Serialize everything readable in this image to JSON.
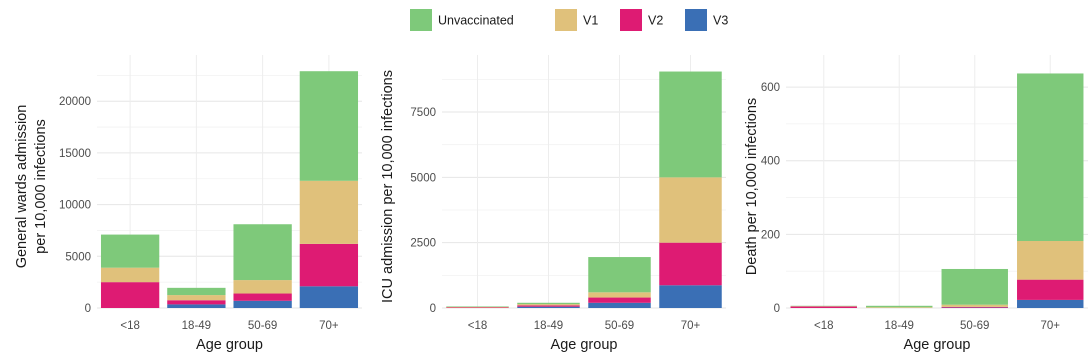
{
  "legend": {
    "items": [
      {
        "label": "Unvaccinated",
        "color": "#7ec97a"
      },
      {
        "label": "V1",
        "color": "#e0c17b"
      },
      {
        "label": "V2",
        "color": "#de1b73"
      },
      {
        "label": "V3",
        "color": "#3a6fb5"
      }
    ]
  },
  "chart_data": [
    {
      "type": "bar",
      "stacked": true,
      "xlabel": "Age group",
      "ylabel": [
        "General wards admission",
        "per 10,000 infections"
      ],
      "categories": [
        "<18",
        "18-49",
        "50-69",
        "70+"
      ],
      "ylim": [
        0,
        23500
      ],
      "yticks": [
        0,
        5000,
        10000,
        15000,
        20000
      ],
      "ytick_labels": [
        "0",
        "5000",
        "10000",
        "15000",
        "20000"
      ],
      "grid": true,
      "series": [
        {
          "name": "V3",
          "values": [
            0,
            350,
            700,
            2100
          ]
        },
        {
          "name": "V2",
          "values": [
            2500,
            400,
            700,
            4100
          ]
        },
        {
          "name": "V1",
          "values": [
            1400,
            500,
            1300,
            6100
          ]
        },
        {
          "name": "Unvaccinated",
          "values": [
            3200,
            700,
            5400,
            10600
          ]
        }
      ]
    },
    {
      "type": "bar",
      "stacked": true,
      "xlabel": "Age group",
      "ylabel": [
        "ICU admission per 10,000 infections"
      ],
      "categories": [
        "<18",
        "18-49",
        "50-69",
        "70+"
      ],
      "ylim": [
        0,
        9300
      ],
      "yticks": [
        0,
        2500,
        5000,
        7500
      ],
      "ytick_labels": [
        "0",
        "2500",
        "5000",
        "7500"
      ],
      "grid": true,
      "series": [
        {
          "name": "V3",
          "values": [
            0,
            50,
            200,
            870
          ]
        },
        {
          "name": "V2",
          "values": [
            20,
            50,
            200,
            1630
          ]
        },
        {
          "name": "V1",
          "values": [
            20,
            50,
            200,
            2500
          ]
        },
        {
          "name": "Unvaccinated",
          "values": [
            20,
            50,
            1350,
            4050
          ]
        }
      ]
    },
    {
      "type": "bar",
      "stacked": true,
      "xlabel": "Age group",
      "ylabel": [
        "Death per 10,000 infections"
      ],
      "categories": [
        "<18",
        "18-49",
        "50-69",
        "70+"
      ],
      "ylim": [
        0,
        660
      ],
      "yticks": [
        0,
        200,
        400,
        600
      ],
      "ytick_labels": [
        "0",
        "200",
        "400",
        "600"
      ],
      "grid": true,
      "series": [
        {
          "name": "V3",
          "values": [
            0,
            0,
            1,
            22
          ]
        },
        {
          "name": "V2",
          "values": [
            4,
            0,
            2,
            55
          ]
        },
        {
          "name": "V1",
          "values": [
            1,
            2,
            6,
            105
          ]
        },
        {
          "name": "Unvaccinated",
          "values": [
            1,
            4,
            97,
            455
          ]
        }
      ]
    }
  ]
}
